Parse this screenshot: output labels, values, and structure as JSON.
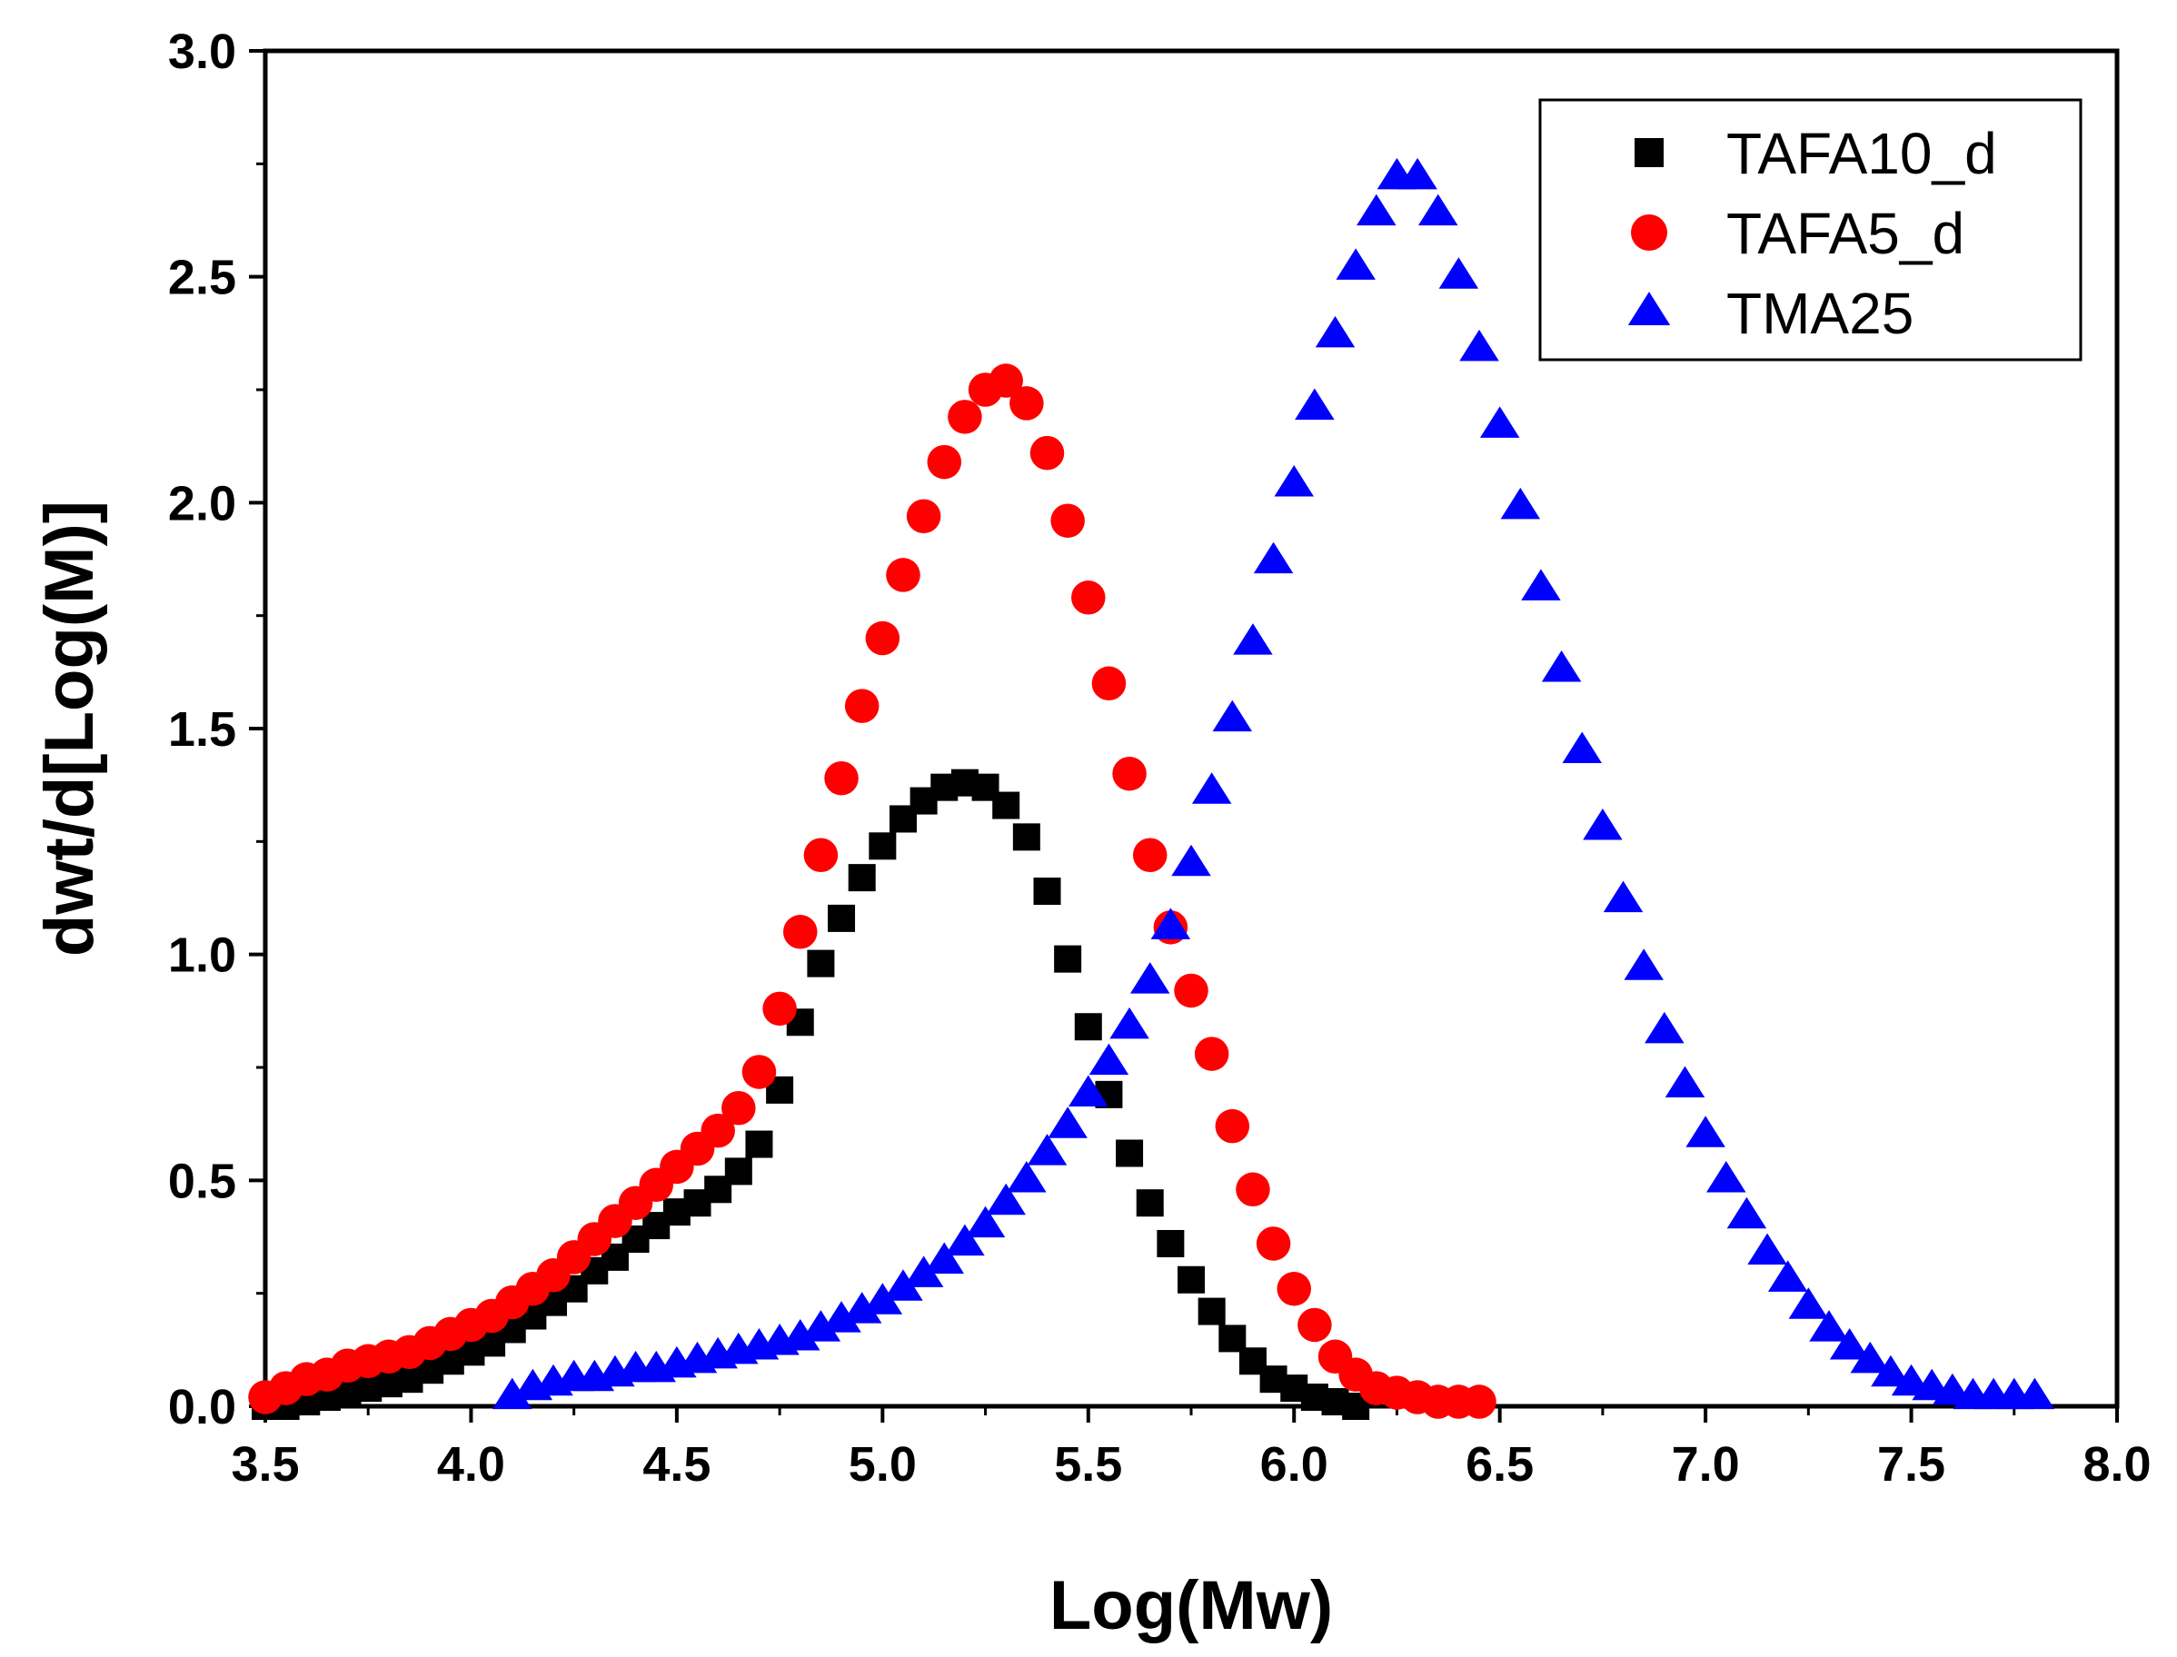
{
  "chart_data": {
    "type": "scatter",
    "title": "",
    "xlabel": "Log(Mw)",
    "ylabel": "dwt/d[Log(M)]",
    "xlim": [
      3.5,
      8.0
    ],
    "ylim": [
      0.0,
      3.0
    ],
    "xticks": [
      3.5,
      4.0,
      4.5,
      5.0,
      5.5,
      6.0,
      6.5,
      7.0,
      7.5,
      8.0
    ],
    "yticks": [
      0.0,
      0.5,
      1.0,
      1.5,
      2.0,
      2.5,
      3.0
    ],
    "xtick_labels": [
      "3.5",
      "4.0",
      "4.5",
      "5.0",
      "5.5",
      "6.0",
      "6.5",
      "7.0",
      "7.5",
      "8.0"
    ],
    "ytick_labels": [
      "0.0",
      "0.5",
      "1.0",
      "1.5",
      "2.0",
      "2.5",
      "3.0"
    ],
    "legend_position": "top-right",
    "grid": false,
    "series": [
      {
        "name": "TAFA10_d",
        "marker": "square",
        "color": "#000000",
        "x": [
          3.5,
          3.55,
          3.6,
          3.65,
          3.7,
          3.75,
          3.8,
          3.85,
          3.9,
          3.95,
          4.0,
          4.05,
          4.1,
          4.15,
          4.2,
          4.25,
          4.3,
          4.35,
          4.4,
          4.45,
          4.5,
          4.55,
          4.6,
          4.65,
          4.7,
          4.75,
          4.8,
          4.85,
          4.9,
          4.95,
          5.0,
          5.05,
          5.1,
          5.15,
          5.2,
          5.25,
          5.3,
          5.35,
          5.4,
          5.45,
          5.5,
          5.55,
          5.6,
          5.65,
          5.7,
          5.75,
          5.8,
          5.85,
          5.9,
          5.95,
          6.0,
          6.05,
          6.1,
          6.15
        ],
        "y": [
          0.0,
          0.0,
          0.01,
          0.02,
          0.03,
          0.04,
          0.05,
          0.06,
          0.08,
          0.1,
          0.12,
          0.14,
          0.17,
          0.2,
          0.23,
          0.26,
          0.3,
          0.33,
          0.37,
          0.4,
          0.43,
          0.45,
          0.48,
          0.52,
          0.58,
          0.7,
          0.85,
          0.98,
          1.08,
          1.17,
          1.24,
          1.3,
          1.34,
          1.37,
          1.38,
          1.37,
          1.33,
          1.26,
          1.14,
          0.99,
          0.84,
          0.69,
          0.56,
          0.45,
          0.36,
          0.28,
          0.21,
          0.15,
          0.1,
          0.06,
          0.04,
          0.02,
          0.01,
          0.0
        ]
      },
      {
        "name": "TAFA5_d",
        "marker": "circle",
        "color": "#ff0000",
        "x": [
          3.5,
          3.55,
          3.6,
          3.65,
          3.7,
          3.75,
          3.8,
          3.85,
          3.9,
          3.95,
          4.0,
          4.05,
          4.1,
          4.15,
          4.2,
          4.25,
          4.3,
          4.35,
          4.4,
          4.45,
          4.5,
          4.55,
          4.6,
          4.65,
          4.7,
          4.75,
          4.8,
          4.85,
          4.9,
          4.95,
          5.0,
          5.05,
          5.1,
          5.15,
          5.2,
          5.25,
          5.3,
          5.35,
          5.4,
          5.45,
          5.5,
          5.55,
          5.6,
          5.65,
          5.7,
          5.75,
          5.8,
          5.85,
          5.9,
          5.95,
          6.0,
          6.05,
          6.1,
          6.15,
          6.2,
          6.25,
          6.3,
          6.35,
          6.4,
          6.45
        ],
        "y": [
          0.02,
          0.04,
          0.06,
          0.07,
          0.09,
          0.1,
          0.11,
          0.12,
          0.14,
          0.16,
          0.18,
          0.2,
          0.23,
          0.26,
          0.29,
          0.33,
          0.37,
          0.41,
          0.45,
          0.49,
          0.53,
          0.57,
          0.61,
          0.66,
          0.74,
          0.88,
          1.05,
          1.22,
          1.39,
          1.55,
          1.7,
          1.84,
          1.97,
          2.09,
          2.19,
          2.25,
          2.27,
          2.22,
          2.11,
          1.96,
          1.79,
          1.6,
          1.4,
          1.22,
          1.06,
          0.92,
          0.78,
          0.62,
          0.48,
          0.36,
          0.26,
          0.18,
          0.11,
          0.07,
          0.04,
          0.03,
          0.02,
          0.01,
          0.01,
          0.01
        ]
      },
      {
        "name": "TMA25",
        "marker": "triangle",
        "color": "#0000ff",
        "x": [
          4.1,
          4.15,
          4.2,
          4.25,
          4.3,
          4.35,
          4.4,
          4.45,
          4.5,
          4.55,
          4.6,
          4.65,
          4.7,
          4.75,
          4.8,
          4.85,
          4.9,
          4.95,
          5.0,
          5.05,
          5.1,
          5.15,
          5.2,
          5.25,
          5.3,
          5.35,
          5.4,
          5.45,
          5.5,
          5.55,
          5.6,
          5.65,
          5.7,
          5.75,
          5.8,
          5.85,
          5.9,
          5.95,
          6.0,
          6.05,
          6.1,
          6.15,
          6.2,
          6.25,
          6.3,
          6.35,
          6.4,
          6.45,
          6.5,
          6.55,
          6.6,
          6.65,
          6.7,
          6.75,
          6.8,
          6.85,
          6.9,
          6.95,
          7.0,
          7.05,
          7.1,
          7.15,
          7.2,
          7.25,
          7.3,
          7.35,
          7.4,
          7.45,
          7.5,
          7.55,
          7.6,
          7.65,
          7.7,
          7.75,
          7.8
        ],
        "y": [
          0.02,
          0.04,
          0.05,
          0.06,
          0.06,
          0.07,
          0.08,
          0.08,
          0.09,
          0.1,
          0.11,
          0.12,
          0.13,
          0.14,
          0.15,
          0.17,
          0.19,
          0.21,
          0.23,
          0.26,
          0.29,
          0.32,
          0.36,
          0.4,
          0.45,
          0.5,
          0.56,
          0.62,
          0.69,
          0.76,
          0.84,
          0.94,
          1.06,
          1.2,
          1.36,
          1.52,
          1.69,
          1.87,
          2.04,
          2.21,
          2.37,
          2.52,
          2.64,
          2.72,
          2.72,
          2.64,
          2.5,
          2.34,
          2.17,
          1.99,
          1.81,
          1.63,
          1.45,
          1.28,
          1.12,
          0.97,
          0.83,
          0.71,
          0.6,
          0.5,
          0.42,
          0.34,
          0.28,
          0.22,
          0.17,
          0.13,
          0.1,
          0.07,
          0.05,
          0.04,
          0.03,
          0.02,
          0.02,
          0.02,
          0.02
        ]
      }
    ]
  }
}
